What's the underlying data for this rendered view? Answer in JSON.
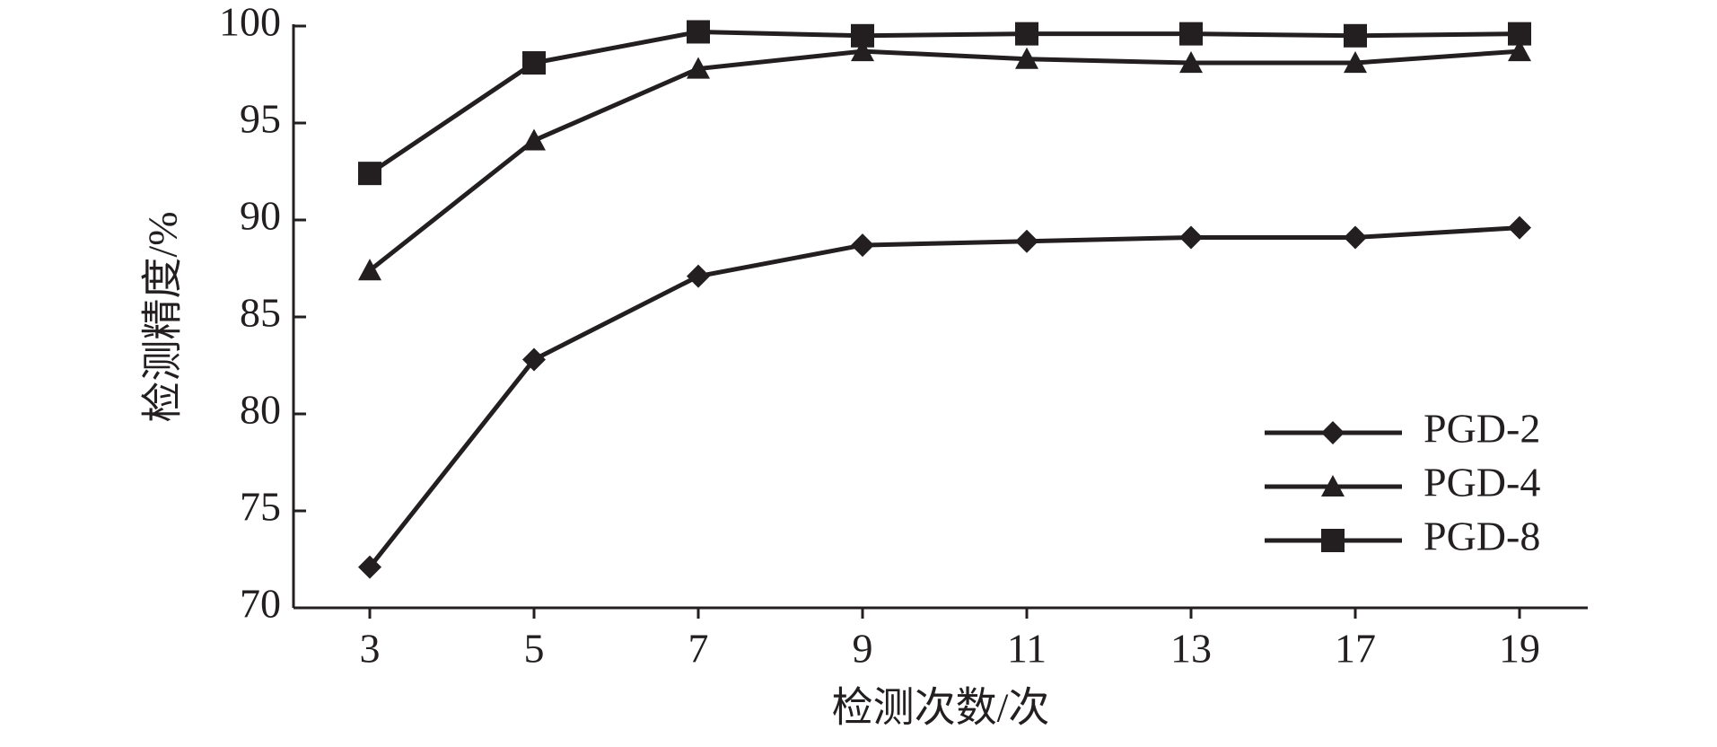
{
  "chart_data": {
    "type": "line",
    "xlabel": "检测次数/次",
    "ylabel": "检测精度/%",
    "categories": [
      "3",
      "5",
      "7",
      "9",
      "11",
      "13",
      "17",
      "19"
    ],
    "series": [
      {
        "name": "PGD-2",
        "color": "#231f20",
        "marker": "diamond",
        "values": [
          72.1,
          82.8,
          87.1,
          88.7,
          88.9,
          89.1,
          89.1,
          89.6
        ]
      },
      {
        "name": "PGD-4",
        "color": "#231f20",
        "marker": "triangle",
        "values": [
          87.4,
          94.1,
          97.8,
          98.7,
          98.3,
          98.1,
          98.1,
          98.7
        ]
      },
      {
        "name": "PGD-8",
        "color": "#231f20",
        "marker": "square",
        "values": [
          92.4,
          98.1,
          99.7,
          99.5,
          99.6,
          99.6,
          99.5,
          99.6
        ]
      }
    ],
    "ylim": [
      70,
      100
    ],
    "yticks": [
      70,
      75,
      80,
      85,
      90,
      95,
      100
    ],
    "legend": "lower right"
  }
}
